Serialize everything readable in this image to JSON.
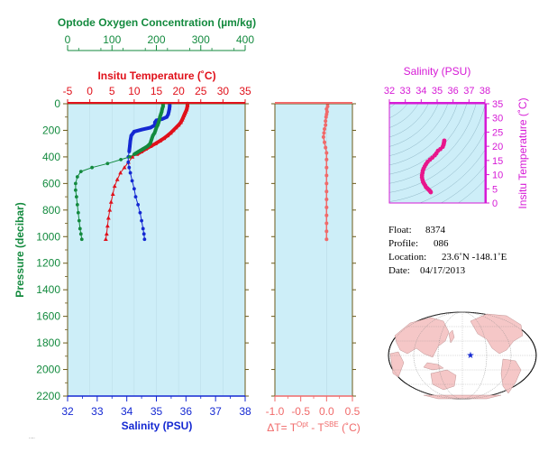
{
  "colors": {
    "oxygen": "#138a3e",
    "temperature": "#e0101a",
    "salinity": "#1428d2",
    "pressure": "#138a3e",
    "diff": "#f06a6a",
    "magenta": "#d61ad6",
    "plot_bg": "#cdeef8",
    "axis": "#6b5a1a",
    "ts_points": "#e8168c",
    "land": "#f5c7c7",
    "ocean": "#ffffff"
  },
  "labels": {
    "oxygen_title": "Optode Oxygen Concentration (µm/kg)",
    "temp_title": "Insitu Temperature (˚C)",
    "pressure_title": "Pressure (decibar)",
    "salinity_title": "Salinity (PSU)",
    "diff_title_prefix": "ΔT= T",
    "diff_sup1": "Opt",
    "diff_mid": " - T",
    "diff_sup2": "SBE",
    "diff_suffix": " (˚C)",
    "ts_salinity_title": "Salinity (PSU)",
    "ts_temp_title": "Insitu Temperature (˚C)",
    "float_label": "Float:",
    "float_value": "8374",
    "profile_label": "Profile:",
    "profile_value": "086",
    "location_label": "Location:",
    "location_value": "23.6˚N  -148.1˚E",
    "date_label": "Date:",
    "date_value": "04/17/2013"
  },
  "chart_data": [
    {
      "type": "line",
      "panel": "main-profile",
      "y_axis": {
        "label": "Pressure (decibar)",
        "range": [
          0,
          2200
        ],
        "inverted": true,
        "ticks": [
          0,
          200,
          400,
          600,
          800,
          1000,
          1200,
          1400,
          1600,
          1800,
          2000,
          2200
        ]
      },
      "x_axes": {
        "oxygen": {
          "label": "Optode Oxygen Concentration (µm/kg)",
          "range": [
            0,
            400
          ],
          "ticks": [
            0,
            100,
            200,
            300,
            400
          ]
        },
        "temperature": {
          "label": "Insitu Temperature (˚C)",
          "range": [
            -5,
            35
          ],
          "ticks": [
            -5,
            0,
            5,
            10,
            15,
            20,
            25,
            30,
            35
          ]
        },
        "salinity": {
          "label": "Salinity (PSU)",
          "range": [
            32,
            38
          ],
          "ticks": [
            32,
            33,
            34,
            35,
            36,
            37,
            38
          ]
        }
      },
      "series": [
        {
          "axis": "temperature",
          "marker": "triangle",
          "points": [
            [
              22.0,
              0
            ],
            [
              22.0,
              15
            ],
            [
              21.9,
              30
            ],
            [
              21.8,
              45
            ],
            [
              21.6,
              60
            ],
            [
              21.4,
              75
            ],
            [
              21.2,
              90
            ],
            [
              21.0,
              105
            ],
            [
              20.8,
              120
            ],
            [
              20.5,
              140
            ],
            [
              20.0,
              160
            ],
            [
              19.4,
              180
            ],
            [
              18.8,
              200
            ],
            [
              18.2,
              220
            ],
            [
              17.5,
              240
            ],
            [
              16.7,
              260
            ],
            [
              15.8,
              280
            ],
            [
              14.8,
              300
            ],
            [
              13.7,
              320
            ],
            [
              12.6,
              340
            ],
            [
              11.6,
              360
            ],
            [
              10.6,
              380
            ],
            [
              9.6,
              400
            ],
            [
              8.7,
              440
            ],
            [
              7.8,
              480
            ],
            [
              6.9,
              520
            ],
            [
              6.2,
              570
            ],
            [
              5.6,
              620
            ],
            [
              5.2,
              680
            ],
            [
              4.8,
              740
            ],
            [
              4.5,
              800
            ],
            [
              4.2,
              860
            ],
            [
              4.0,
              920
            ],
            [
              3.8,
              980
            ],
            [
              3.6,
              1020
            ]
          ]
        },
        {
          "axis": "salinity",
          "marker": "circle",
          "points": [
            [
              35.45,
              0
            ],
            [
              35.45,
              20
            ],
            [
              35.44,
              40
            ],
            [
              35.42,
              60
            ],
            [
              35.4,
              80
            ],
            [
              35.35,
              100
            ],
            [
              35.2,
              115
            ],
            [
              35.0,
              125
            ],
            [
              34.95,
              140
            ],
            [
              34.95,
              160
            ],
            [
              34.8,
              180
            ],
            [
              34.5,
              195
            ],
            [
              34.25,
              210
            ],
            [
              34.15,
              240
            ],
            [
              34.12,
              280
            ],
            [
              34.1,
              320
            ],
            [
              34.08,
              360
            ],
            [
              34.05,
              400
            ],
            [
              34.05,
              440
            ],
            [
              34.08,
              480
            ],
            [
              34.12,
              520
            ],
            [
              34.18,
              580
            ],
            [
              34.25,
              640
            ],
            [
              34.3,
              700
            ],
            [
              34.38,
              760
            ],
            [
              34.45,
              820
            ],
            [
              34.5,
              880
            ],
            [
              34.55,
              940
            ],
            [
              34.58,
              980
            ],
            [
              34.6,
              1020
            ]
          ]
        },
        {
          "axis": "oxygen",
          "marker": "circle",
          "points": [
            [
              215,
              0
            ],
            [
              215,
              20
            ],
            [
              213,
              40
            ],
            [
              212,
              60
            ],
            [
              210,
              80
            ],
            [
              208,
              100
            ],
            [
              207,
              120
            ],
            [
              205,
              140
            ],
            [
              203,
              160
            ],
            [
              200,
              180
            ],
            [
              198,
              200
            ],
            [
              196,
              220
            ],
            [
              192,
              240
            ],
            [
              190,
              260
            ],
            [
              188,
              280
            ],
            [
              186,
              300
            ],
            [
              180,
              320
            ],
            [
              170,
              340
            ],
            [
              160,
              360
            ],
            [
              150,
              380
            ],
            [
              140,
              400
            ],
            [
              120,
              420
            ],
            [
              90,
              450
            ],
            [
              55,
              480
            ],
            [
              30,
              510
            ],
            [
              22,
              550
            ],
            [
              18,
              600
            ],
            [
              18,
              650
            ],
            [
              20,
              700
            ],
            [
              22,
              760
            ],
            [
              24,
              820
            ],
            [
              26,
              880
            ],
            [
              28,
              940
            ],
            [
              30,
              980
            ],
            [
              32,
              1020
            ]
          ]
        }
      ]
    },
    {
      "type": "line",
      "panel": "temperature-difference",
      "x_axis": {
        "label": "ΔT= T(Opt) - T(SBE) (˚C)",
        "range": [
          -1.0,
          0.5
        ],
        "ticks": [
          -1.0,
          -0.5,
          0.0,
          0.5
        ]
      },
      "y_axis": {
        "range": [
          0,
          2200
        ],
        "inverted": true
      },
      "series": [
        {
          "marker": "circle",
          "points": [
            [
              0.02,
              0
            ],
            [
              0.02,
              20
            ],
            [
              0.0,
              40
            ],
            [
              0.01,
              60
            ],
            [
              0.0,
              80
            ],
            [
              -0.01,
              100
            ],
            [
              -0.02,
              130
            ],
            [
              -0.02,
              160
            ],
            [
              -0.04,
              190
            ],
            [
              -0.05,
              220
            ],
            [
              -0.06,
              250
            ],
            [
              -0.04,
              290
            ],
            [
              -0.02,
              330
            ],
            [
              0.0,
              370
            ],
            [
              0.0,
              420
            ],
            [
              0.0,
              480
            ],
            [
              0.0,
              540
            ],
            [
              0.0,
              600
            ],
            [
              0.0,
              660
            ],
            [
              0.0,
              720
            ],
            [
              0.0,
              780
            ],
            [
              0.0,
              840
            ],
            [
              0.0,
              900
            ],
            [
              0.0,
              960
            ],
            [
              0.0,
              1020
            ]
          ]
        }
      ]
    },
    {
      "type": "scatter",
      "panel": "ts-diagram",
      "x_axis": {
        "label": "Salinity (PSU)",
        "range": [
          32,
          38
        ],
        "ticks": [
          32,
          33,
          34,
          35,
          36,
          37,
          38
        ]
      },
      "y_axis": {
        "label": "Insitu Temperature (˚C)",
        "range": [
          0,
          35
        ],
        "ticks": [
          0,
          5,
          10,
          15,
          20,
          25,
          30,
          35
        ]
      },
      "series": [
        {
          "points": [
            [
              35.45,
              22.0
            ],
            [
              35.44,
              21.6
            ],
            [
              35.42,
              21.0
            ],
            [
              35.4,
              20.5
            ],
            [
              35.35,
              19.8
            ],
            [
              35.2,
              19.0
            ],
            [
              35.05,
              18.4
            ],
            [
              34.95,
              17.5
            ],
            [
              34.85,
              16.8
            ],
            [
              34.7,
              16.0
            ],
            [
              34.55,
              15.3
            ],
            [
              34.4,
              14.5
            ],
            [
              34.3,
              13.7
            ],
            [
              34.22,
              12.9
            ],
            [
              34.15,
              12.1
            ],
            [
              34.1,
              11.4
            ],
            [
              34.08,
              10.6
            ],
            [
              34.05,
              9.8
            ],
            [
              34.05,
              9.0
            ],
            [
              34.08,
              8.2
            ],
            [
              34.12,
              7.4
            ],
            [
              34.18,
              6.8
            ],
            [
              34.25,
              6.2
            ],
            [
              34.3,
              5.6
            ],
            [
              34.38,
              5.2
            ],
            [
              34.45,
              4.8
            ],
            [
              34.5,
              4.5
            ],
            [
              34.55,
              4.2
            ],
            [
              34.58,
              4.0
            ],
            [
              34.6,
              3.8
            ]
          ]
        }
      ]
    }
  ]
}
